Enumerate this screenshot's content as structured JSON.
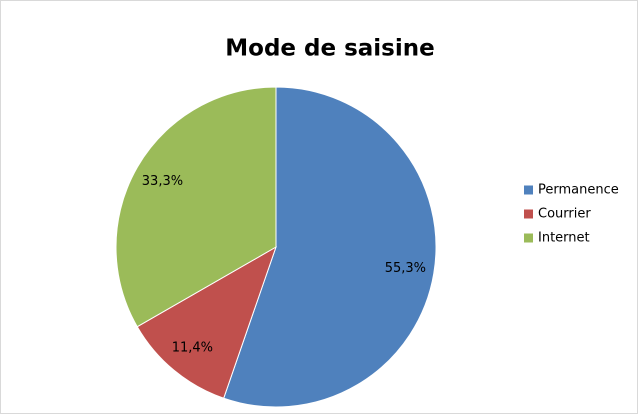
{
  "chart_data": {
    "type": "pie",
    "title": "Mode de saisine",
    "categories": [
      "Permanence",
      "Courrier",
      "Internet"
    ],
    "values": [
      55.3,
      11.4,
      33.3
    ],
    "value_labels": [
      "55,3%",
      "11,4%",
      "33,3%"
    ],
    "colors": [
      "#4f81bd",
      "#c0504d",
      "#9bbb59"
    ],
    "legend": "right"
  }
}
